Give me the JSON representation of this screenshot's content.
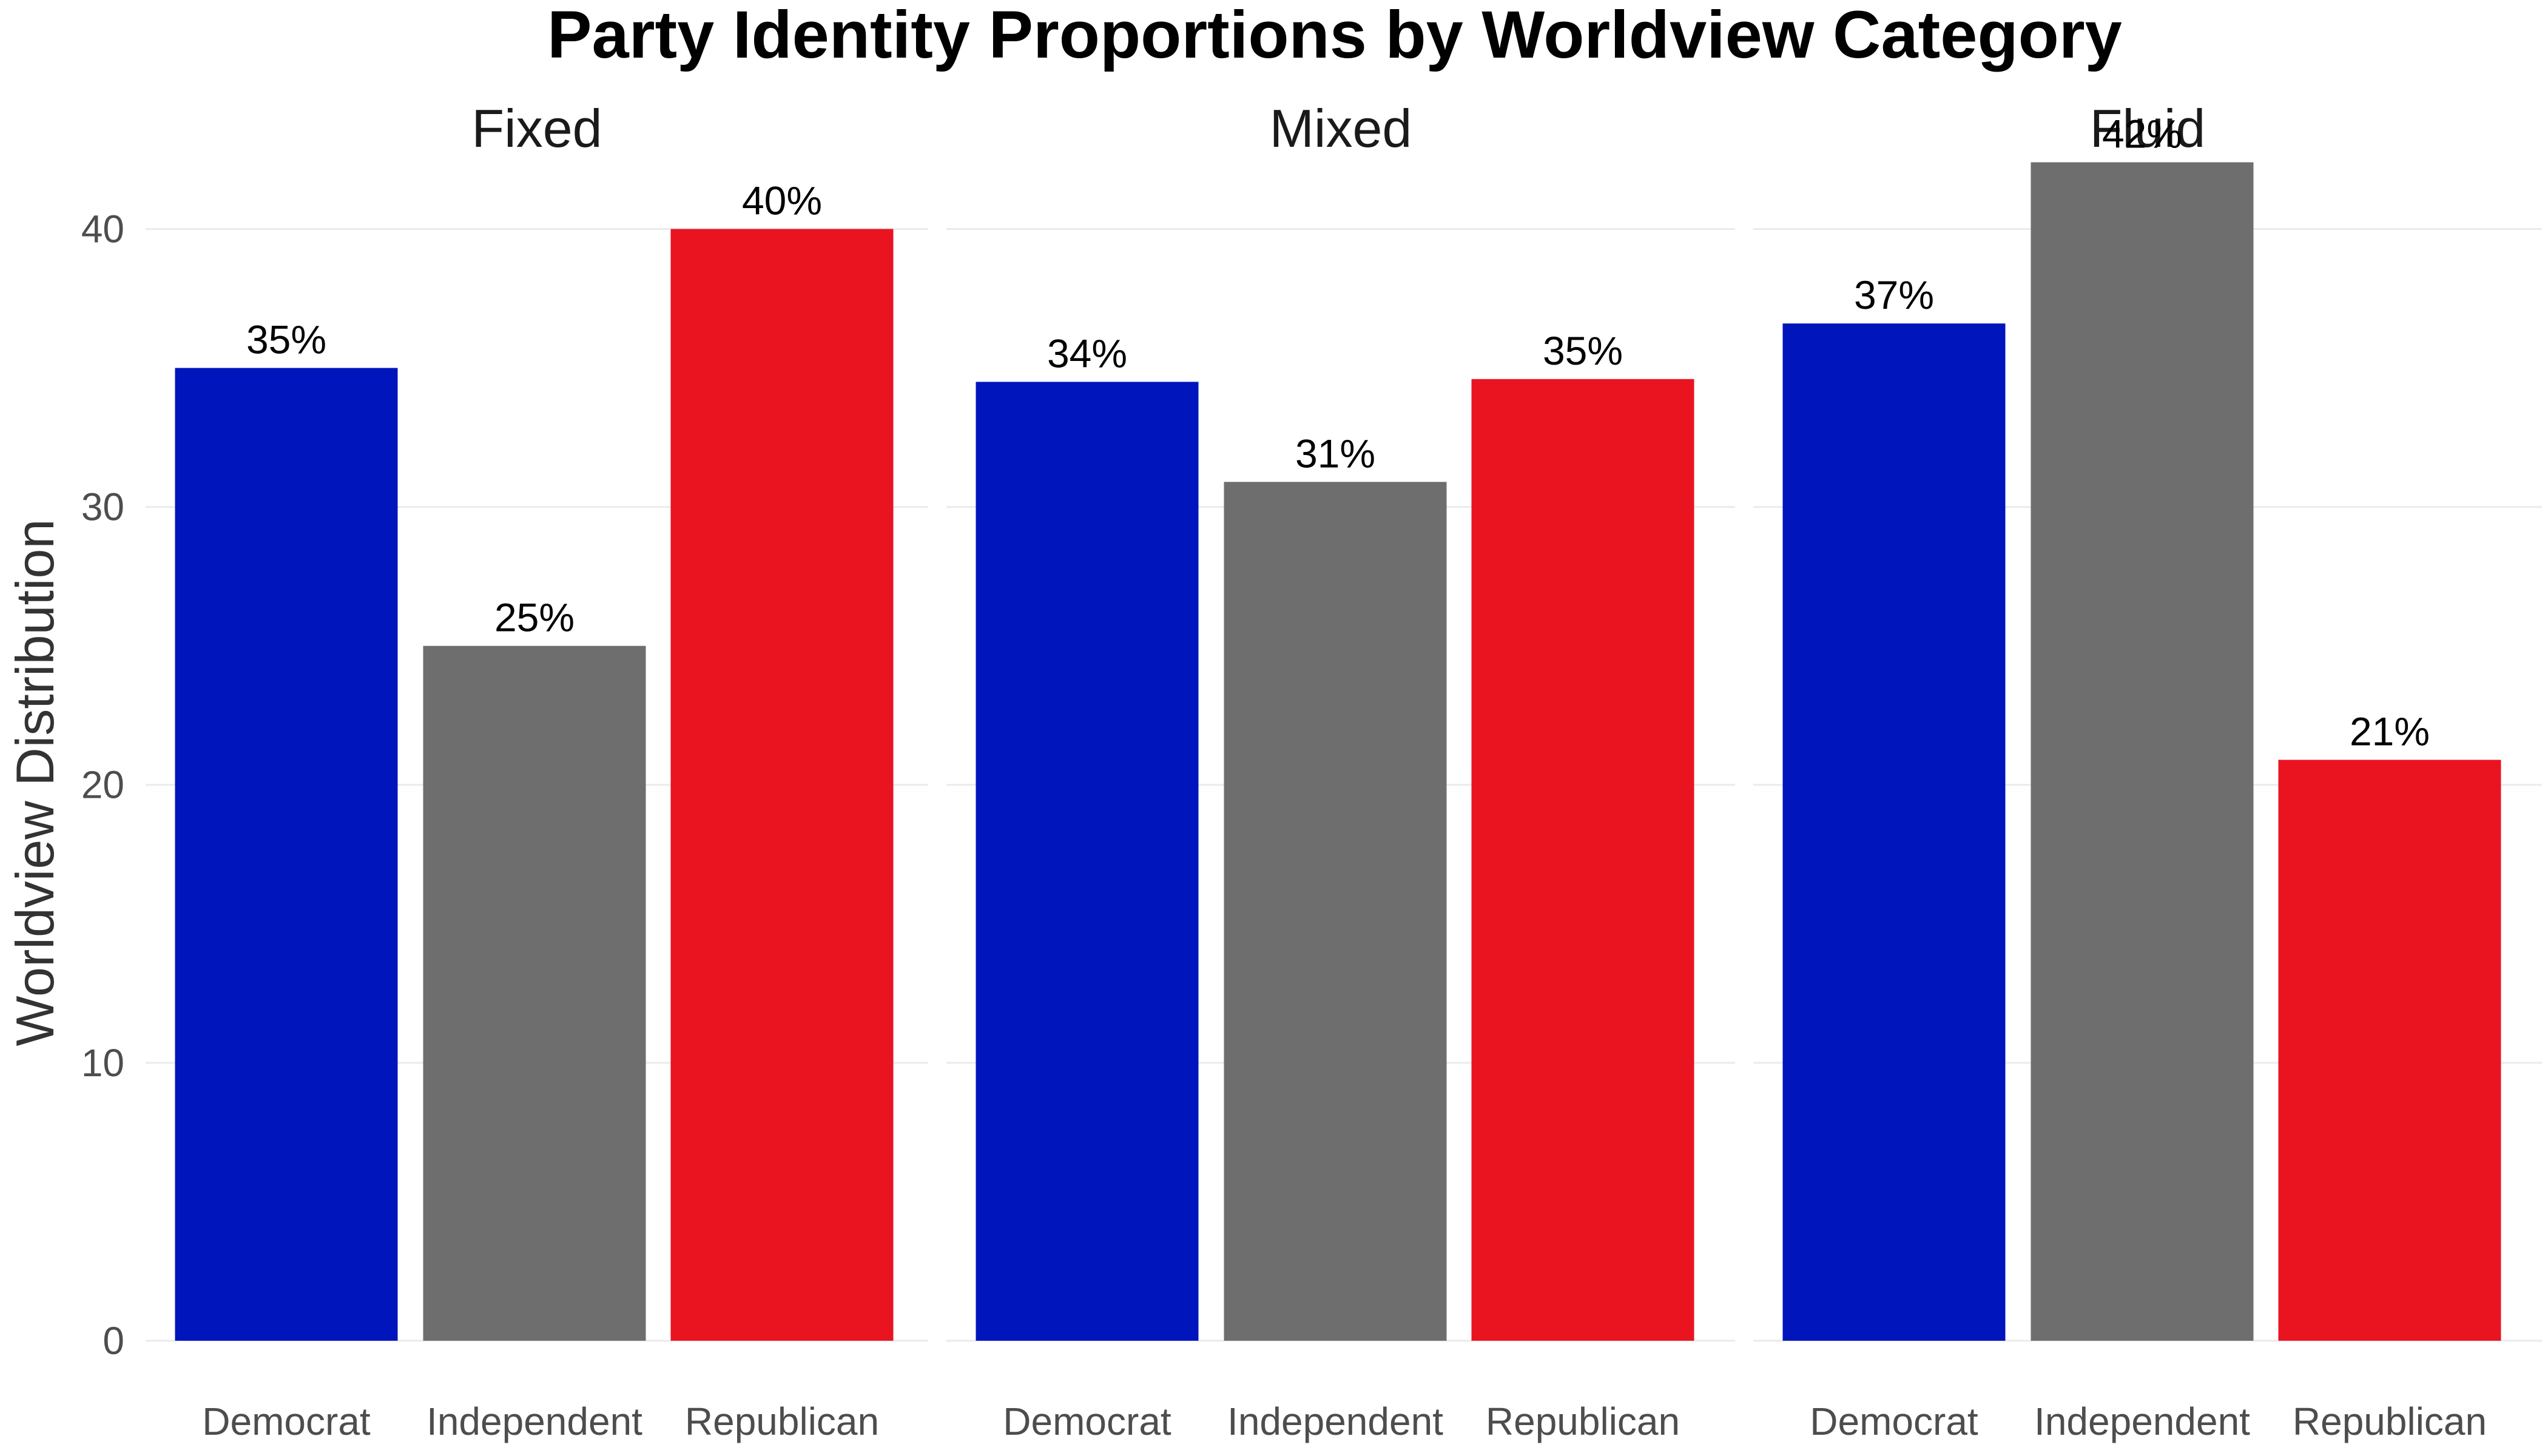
{
  "chart_data": {
    "type": "bar",
    "title": "Party Identity Proportions by Worldview Category",
    "xlabel": "",
    "ylabel": "Worldview Distribution",
    "ylim": [
      0,
      43
    ],
    "yticks": [
      0,
      10,
      20,
      30,
      40
    ],
    "grid": true,
    "legend": "none",
    "categories": [
      "Democrat",
      "Independent",
      "Republican"
    ],
    "colors": {
      "Democrat": "#0015BC",
      "Independent": "#6E6E6E",
      "Republican": "#E91420"
    },
    "facets": [
      {
        "name": "Fixed",
        "values": [
          35.0,
          25.0,
          40.0
        ],
        "labels": [
          "35%",
          "25%",
          "40%"
        ]
      },
      {
        "name": "Mixed",
        "values": [
          34.5,
          30.9,
          34.6
        ],
        "labels": [
          "34%",
          "31%",
          "35%"
        ]
      },
      {
        "name": "Fluid",
        "values": [
          36.6,
          42.4,
          20.9
        ],
        "labels": [
          "37%",
          "42%",
          "21%"
        ]
      }
    ]
  }
}
